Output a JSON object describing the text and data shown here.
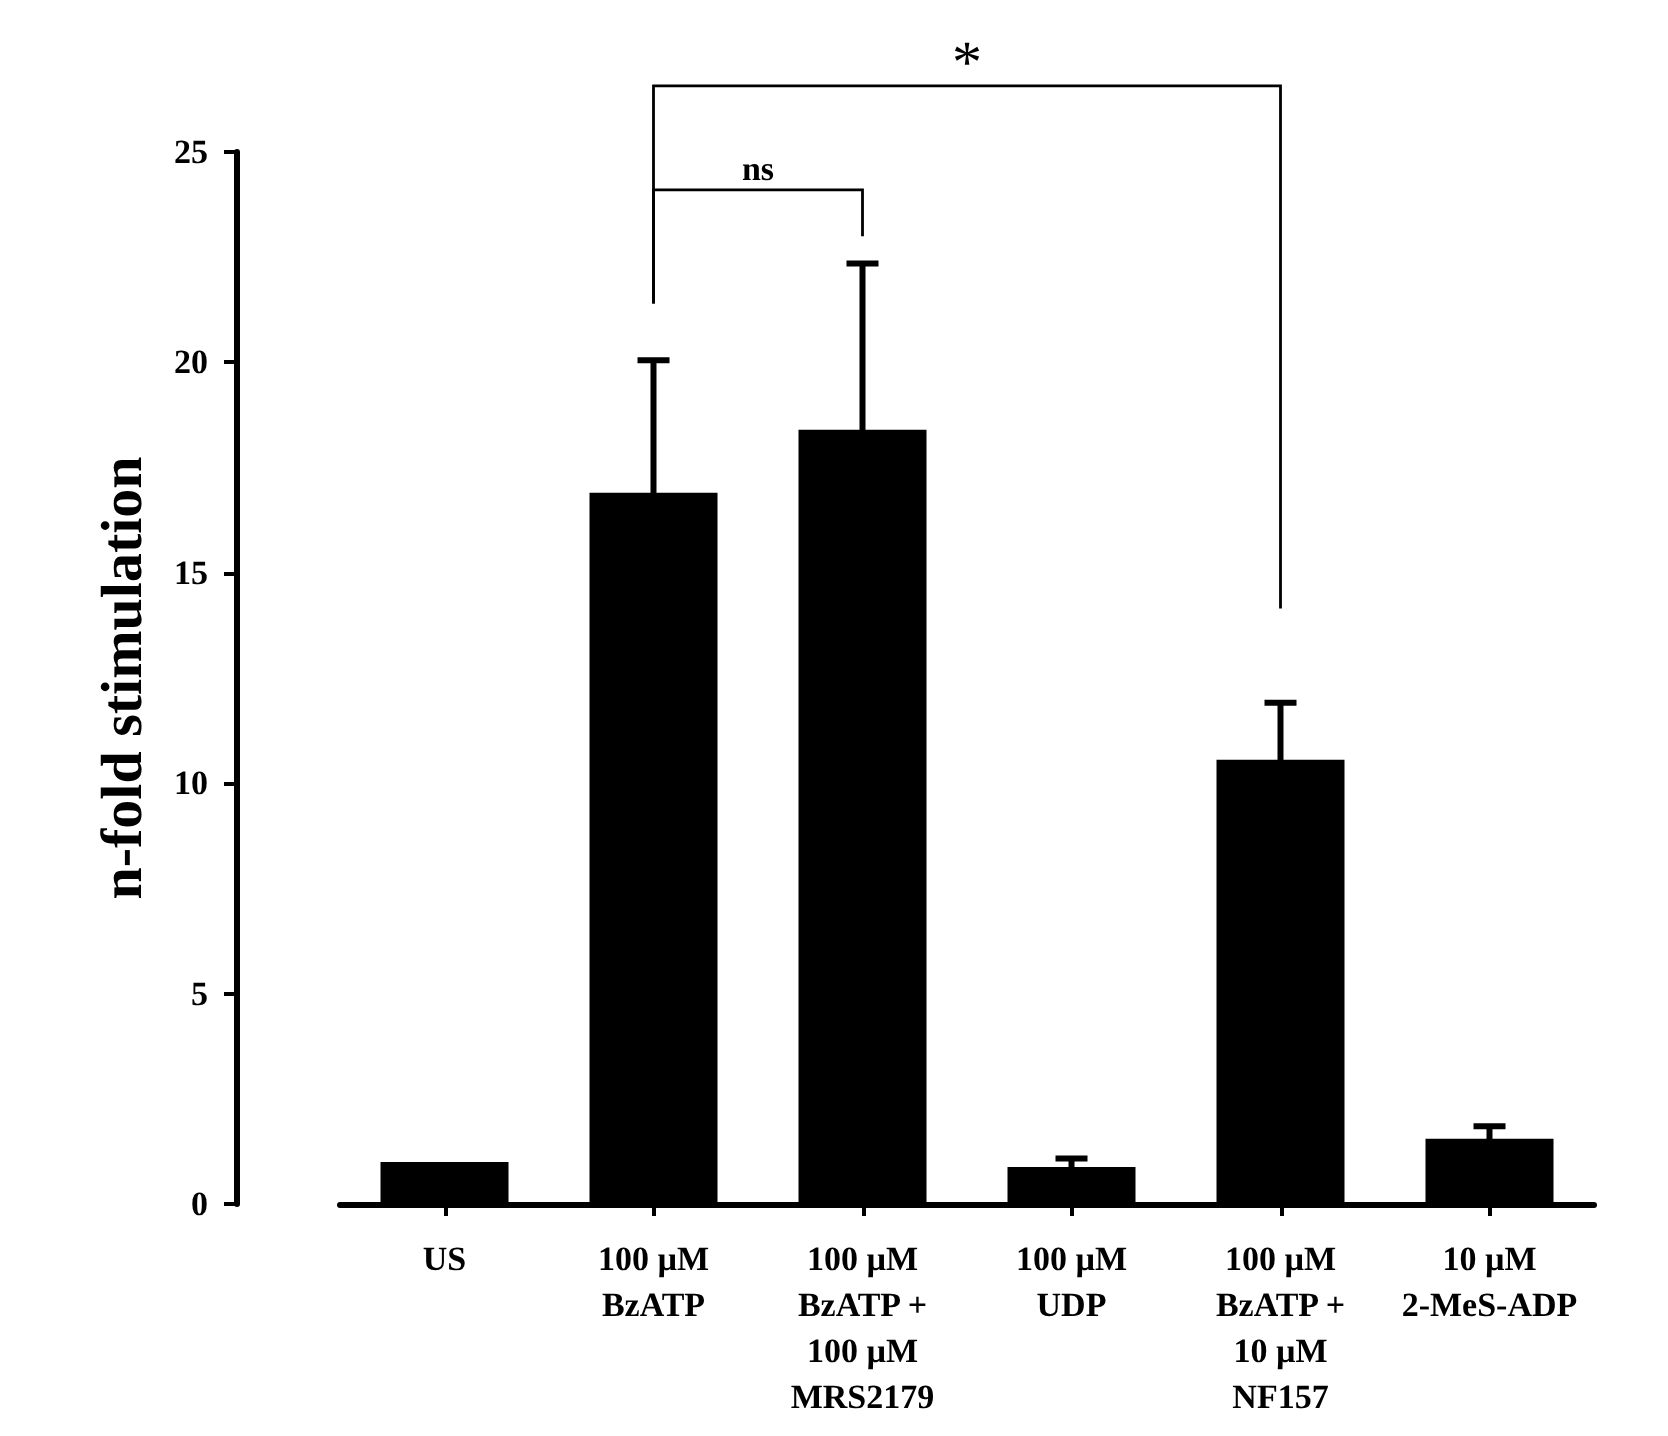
{
  "chart_data": {
    "type": "bar",
    "ylabel": "n-fold stimulation",
    "categories": [
      "US",
      "100 µM\nBzATP",
      "100 µM\nBzATP +\n100 µM\nMRS2179",
      "100 µM\nUDP",
      "100 µM\nBzATP +\n10 µM\nNF157",
      "10 µM\n2-MeS-ADP"
    ],
    "values": [
      1.0,
      16.9,
      18.4,
      0.88,
      10.56,
      1.55
    ],
    "errors": [
      null,
      3.15,
      3.95,
      0.2,
      1.35,
      0.3
    ],
    "color": "#000000",
    "ylim": [
      0,
      25
    ],
    "yticks": [
      0,
      5,
      10,
      15,
      20,
      25
    ],
    "grid": false,
    "annotations": [
      "ns",
      "*"
    ]
  }
}
